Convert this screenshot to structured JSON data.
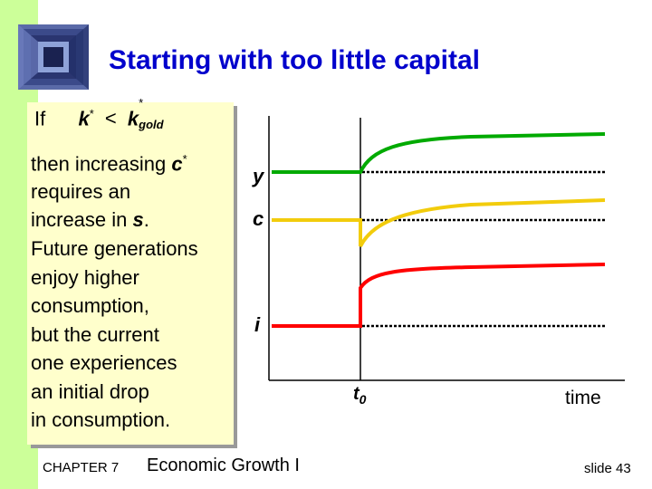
{
  "slide": {
    "title": "Starting with too little capital",
    "if_label": "If",
    "condition_k": "k",
    "condition_sup": "*",
    "condition_op": "<",
    "condition_k2": "k",
    "condition_sup2": "*",
    "condition_sub2": "gold",
    "para1_line1_prefix": "then increasing ",
    "para1_line1_var": "c",
    "para1_line1_sup": "*",
    "para1_line2": "requires an",
    "para1_line3_prefix": "increase in ",
    "para1_line3_var": "s",
    "para1_line3_suffix": ".",
    "para2": "Future generations enjoy higher consumption, but the current one experiences an initial drop in consumption.",
    "para2_lines": [
      "Future generations",
      "enjoy higher",
      "consumption,",
      "but the current",
      "one experiences",
      "an initial drop",
      "in consumption."
    ]
  },
  "chart_data": {
    "type": "line",
    "series": [
      {
        "name": "y",
        "color": "#00aa00"
      },
      {
        "name": "c",
        "color": "#f2cc0c"
      },
      {
        "name": "i",
        "color": "#ff0000"
      }
    ],
    "x_marker": "t",
    "x_marker_sub": "0",
    "xlabel": "time"
  },
  "footer": {
    "chapter": "CHAPTER 7",
    "title": "Economic Growth I",
    "slide": "slide 43"
  },
  "colors": {
    "title": "#0000cc",
    "left_bar": "#ccff99",
    "text_box": "#ffffcc",
    "y_line": "#00aa00",
    "c_line": "#f2cc0c",
    "i_line": "#ff0000"
  }
}
